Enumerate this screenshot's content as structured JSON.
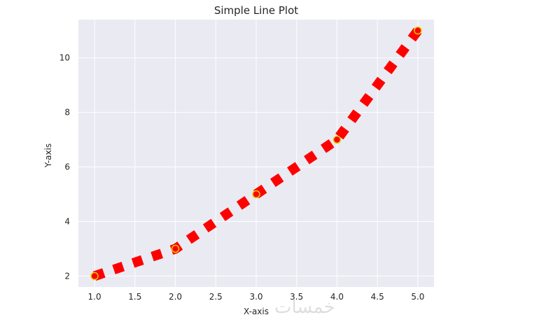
{
  "chart_data": {
    "type": "line",
    "title": "Simple Line Plot",
    "xlabel": "X-axis",
    "ylabel": "Y-axis",
    "xlim": [
      0.8,
      5.2
    ],
    "ylim": [
      1.6,
      11.4
    ],
    "x_ticks": [
      "1.0",
      "1.5",
      "2.0",
      "2.5",
      "3.0",
      "3.5",
      "4.0",
      "4.5",
      "5.0"
    ],
    "y_ticks": [
      "2",
      "4",
      "6",
      "8",
      "10"
    ],
    "grid": true,
    "series": [
      {
        "x": [
          1,
          2,
          3,
          4,
          5
        ],
        "values": [
          2,
          3,
          5,
          7,
          11
        ],
        "line_color": "#ff0000",
        "line_style": "dotted",
        "marker": "circle",
        "marker_face": "#ff0000",
        "marker_edge": "#e0d000"
      }
    ],
    "background": "#eaeaf2",
    "gridline_color": "#ffffff"
  },
  "watermark": "خمسات"
}
